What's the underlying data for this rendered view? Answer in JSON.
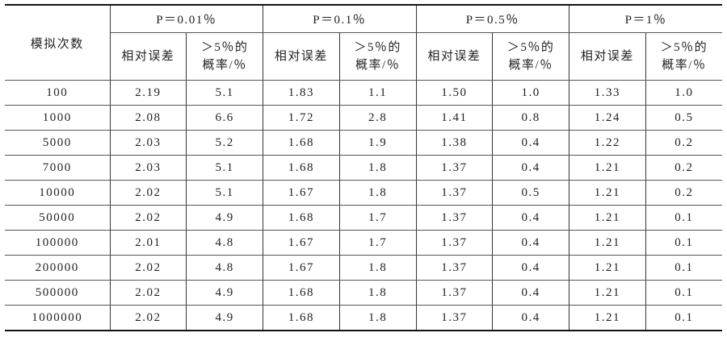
{
  "table": {
    "header": {
      "row_label": "模拟次数",
      "groups": [
        "P＝0.01％",
        "P＝0.1％",
        "P＝0.5％",
        "P＝1％"
      ],
      "subheaders": [
        "相对误差",
        "＞5％的概率/％"
      ]
    },
    "rows": [
      [
        "100",
        "2.19",
        "5.1",
        "1.83",
        "1.1",
        "1.50",
        "1.0",
        "1.33",
        "1.0"
      ],
      [
        "1000",
        "2.08",
        "6.6",
        "1.72",
        "2.8",
        "1.41",
        "0.8",
        "1.24",
        "0.5"
      ],
      [
        "5000",
        "2.03",
        "5.2",
        "1.68",
        "1.9",
        "1.38",
        "0.4",
        "1.22",
        "0.2"
      ],
      [
        "7000",
        "2.03",
        "5.1",
        "1.68",
        "1.8",
        "1.37",
        "0.4",
        "1.21",
        "0.2"
      ],
      [
        "10000",
        "2.02",
        "5.1",
        "1.67",
        "1.8",
        "1.37",
        "0.5",
        "1.21",
        "0.2"
      ],
      [
        "50000",
        "2.02",
        "4.9",
        "1.68",
        "1.7",
        "1.37",
        "0.4",
        "1.21",
        "0.1"
      ],
      [
        "100000",
        "2.01",
        "4.8",
        "1.67",
        "1.7",
        "1.37",
        "0.4",
        "1.21",
        "0.1"
      ],
      [
        "200000",
        "2.02",
        "4.8",
        "1.67",
        "1.8",
        "1.37",
        "0.4",
        "1.21",
        "0.1"
      ],
      [
        "500000",
        "2.02",
        "4.9",
        "1.68",
        "1.8",
        "1.37",
        "0.4",
        "1.21",
        "0.1"
      ],
      [
        "1000000",
        "2.02",
        "4.9",
        "1.68",
        "1.8",
        "1.37",
        "0.4",
        "1.21",
        "0.1"
      ]
    ]
  }
}
